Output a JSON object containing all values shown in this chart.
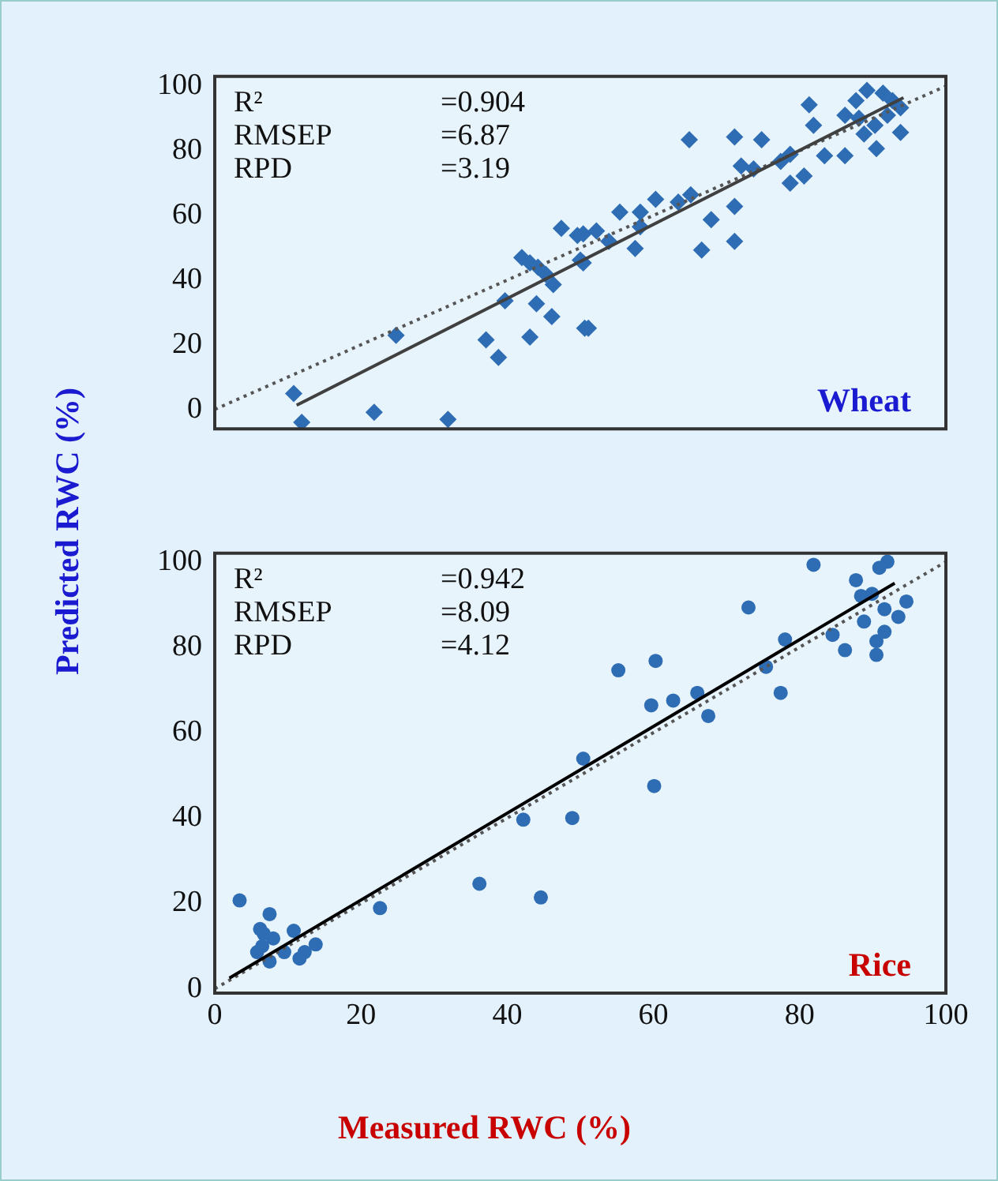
{
  "chart_data": [
    {
      "type": "scatter",
      "title": "Wheat",
      "ylabel": "Predicted RWC (%)",
      "annotations": [
        "R²",
        "=0.904",
        "RMSEP",
        "=6.87",
        "RPD",
        "=3.19"
      ],
      "xlim": [
        0,
        100
      ],
      "xticks": [
        0,
        20,
        40,
        60,
        80,
        100
      ],
      "ylim": [
        -6,
        103
      ],
      "yticks": [
        0,
        20,
        40,
        60,
        80,
        100
      ],
      "tick_labels": "y",
      "legend": false,
      "series": [
        {
          "marker": "diamond",
          "color": "#2e6db4",
          "x": [
            10.8,
            11.9,
            21.8,
            24.8,
            31.9,
            37.1,
            38.8,
            39.7,
            43.1,
            46.1,
            44,
            42,
            43.1,
            44.2,
            45.3,
            46.3,
            47.4,
            49.6,
            50.4,
            50.6,
            50,
            51.1,
            50.4,
            52.2,
            53.9,
            55.4,
            57.5,
            58.2,
            58.2,
            60.3,
            63.4,
            65.1,
            64.9,
            66.6,
            67.9,
            71.1,
            71.1,
            71.1,
            72,
            73.7,
            74.8,
            77.4,
            78.7,
            78.7,
            80.6,
            81.3,
            81.9,
            83.4,
            86.2,
            86.2,
            87.7,
            89.2,
            91.4,
            90.3,
            90.5,
            92,
            93.8,
            93.8,
            88.8,
            88.1,
            92.7
          ],
          "values": [
            4.9,
            -4,
            -0.9,
            22.9,
            -3.1,
            21.5,
            16.1,
            33.6,
            22.4,
            28.7,
            32.7,
            47,
            45.3,
            44,
            41.7,
            38.6,
            56,
            53.8,
            45.3,
            25.1,
            46.2,
            25.1,
            54.3,
            55.2,
            52,
            61,
            49.8,
            61,
            56.5,
            65,
            64.1,
            66.4,
            83.4,
            49.3,
            58.7,
            62.8,
            52,
            84.3,
            75.3,
            74.4,
            83.4,
            76.7,
            70,
            78.9,
            72.2,
            94.2,
            87.9,
            78.5,
            78.5,
            91,
            95.5,
            98.7,
            97.8,
            87.9,
            80.7,
            91,
            85.7,
            93.3,
            85.2,
            90.1,
            95.5
          ]
        },
        {
          "type": "line",
          "marker": "none",
          "line_style": "solid",
          "color": "#404040",
          "x": [
            11.2,
            94.2
          ],
          "values": [
            1.3,
            96.4
          ]
        },
        {
          "type": "line",
          "marker": "none",
          "line_style": "dotted",
          "color": "#555555",
          "x": [
            0,
            100
          ],
          "values": [
            0,
            100
          ]
        }
      ]
    },
    {
      "type": "scatter",
      "title": "Rice",
      "xlabel": "Measured RWC (%)",
      "annotations": [
        "R²",
        "=0.942",
        "RMSEP",
        "=8.09",
        "RPD",
        "=4.12"
      ],
      "xlim": [
        0,
        100
      ],
      "xticks": [
        0,
        20,
        40,
        60,
        80,
        100
      ],
      "ylim": [
        -1,
        102
      ],
      "yticks": [
        0,
        20,
        40,
        60,
        80,
        100
      ],
      "legend": false,
      "series": [
        {
          "marker": "circle",
          "color": "#2e6db4",
          "x": [
            3.4,
            7.5,
            6.2,
            6.7,
            8,
            10.8,
            13.8,
            12.3,
            11.6,
            9.5,
            7.5,
            5.8,
            6.5,
            22.6,
            36.2,
            44.6,
            42.2,
            48.9,
            50.4,
            60.1,
            59.7,
            62.7,
            60.3,
            55.2,
            66,
            67.5,
            73,
            75.4,
            77.4,
            78,
            81.9,
            84.5,
            86.2,
            87.7,
            88.4,
            88.8,
            90.5,
            90.5,
            90.9,
            92,
            91.6,
            93.5,
            94.6,
            91.6,
            89.9
          ],
          "values": [
            20.7,
            17.5,
            14,
            12.9,
            11.8,
            13.6,
            10.4,
            8.6,
            7.1,
            8.6,
            6.4,
            8.6,
            10,
            18.9,
            24.6,
            21.4,
            39.6,
            40,
            53.9,
            47.5,
            66.4,
            67.5,
            76.8,
            74.6,
            69.3,
            63.9,
            89.3,
            75.4,
            69.3,
            81.8,
            99.3,
            82.9,
            79.3,
            95.7,
            92,
            86,
            81.4,
            78.2,
            98.6,
            100,
            88.9,
            87.1,
            90.7,
            83.6,
            92.5
          ]
        },
        {
          "type": "line",
          "marker": "none",
          "line_style": "solid",
          "color": "#000000",
          "x": [
            2,
            93
          ],
          "values": [
            2.5,
            95
          ]
        },
        {
          "type": "line",
          "marker": "none",
          "line_style": "dotted",
          "color": "#555555",
          "x": [
            0,
            100
          ],
          "values": [
            0,
            100
          ]
        }
      ]
    }
  ]
}
